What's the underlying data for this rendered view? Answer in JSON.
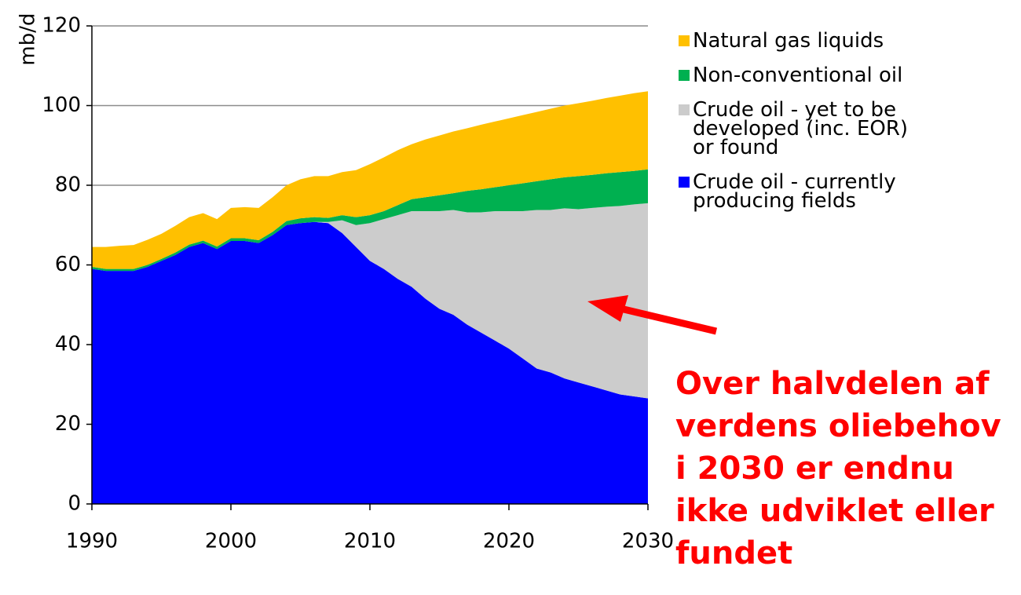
{
  "chart_data": {
    "type": "stacked_area",
    "y_label": "mb/d",
    "annotation": "Over halvdelen af verdens oliebehov i 2030 er endnu ikke udviklet eller fundet",
    "x": [
      1990,
      1991,
      1992,
      1993,
      1994,
      1995,
      1996,
      1997,
      1998,
      1999,
      2000,
      2001,
      2002,
      2003,
      2004,
      2005,
      2006,
      2007,
      2008,
      2009,
      2010,
      2011,
      2012,
      2013,
      2014,
      2015,
      2016,
      2017,
      2018,
      2019,
      2020,
      2021,
      2022,
      2023,
      2024,
      2025,
      2026,
      2027,
      2028,
      2029,
      2030
    ],
    "series": [
      {
        "name": "Crude oil - currently producing fields",
        "color": "#0000ff",
        "values": [
          59,
          58.5,
          58.5,
          58.5,
          59.5,
          61,
          62.5,
          64.5,
          65.5,
          64,
          66,
          66,
          65.5,
          67.5,
          70,
          70.5,
          70.8,
          70.5,
          68,
          64.5,
          61,
          59,
          56.5,
          54.5,
          51.5,
          49,
          47.5,
          45,
          43,
          41,
          39,
          36.5,
          34,
          33,
          31.5,
          30.5,
          29.5,
          28.5,
          27.5,
          27,
          26.5
        ]
      },
      {
        "name": "Crude oil - yet to be developed (inc. EOR) or found",
        "color": "#cccccc",
        "values": [
          0,
          0,
          0,
          0,
          0,
          0,
          0,
          0,
          0,
          0,
          0,
          0,
          0,
          0,
          0,
          0,
          0,
          0.3,
          3.2,
          5.5,
          9.5,
          12.5,
          16,
          19,
          22,
          24.5,
          26.3,
          28.2,
          30.2,
          32.5,
          34.5,
          37,
          39.8,
          40.8,
          42.7,
          43.5,
          44.8,
          46.1,
          47.3,
          48.2,
          49
        ]
      },
      {
        "name": "Non-conventional oil",
        "color": "#00b050",
        "values": [
          0.5,
          0.5,
          0.5,
          0.5,
          0.5,
          0.5,
          0.6,
          0.6,
          0.6,
          0.6,
          0.7,
          0.7,
          0.7,
          0.8,
          1,
          1.2,
          1.2,
          1,
          1.3,
          2,
          2,
          2,
          2.5,
          3,
          3.5,
          4,
          4.2,
          5.4,
          5.8,
          6,
          6.5,
          7,
          7.2,
          7.7,
          7.8,
          8.3,
          8.3,
          8.4,
          8.5,
          8.4,
          8.5
        ]
      },
      {
        "name": "Natural gas liquids",
        "color": "#ffc000",
        "values": [
          5,
          5.5,
          5.8,
          6,
          6.3,
          6.3,
          6.7,
          6.9,
          6.9,
          6.9,
          7.6,
          7.8,
          8.1,
          8.7,
          9,
          9.8,
          10.3,
          10.5,
          10.8,
          11.8,
          12.8,
          13.5,
          13.8,
          13.8,
          14.5,
          15,
          15.5,
          15.7,
          16.2,
          16.5,
          16.8,
          17.1,
          17.4,
          17.7,
          18,
          18.3,
          18.6,
          18.9,
          19.2,
          19.5,
          19.6
        ]
      }
    ],
    "xlim": [
      1990,
      2030
    ],
    "xticks": [
      1990,
      2000,
      2010,
      2020,
      2030
    ],
    "ylim": [
      0,
      120
    ],
    "yticks": [
      0,
      20,
      40,
      60,
      80,
      100,
      120
    ],
    "grid": true
  }
}
